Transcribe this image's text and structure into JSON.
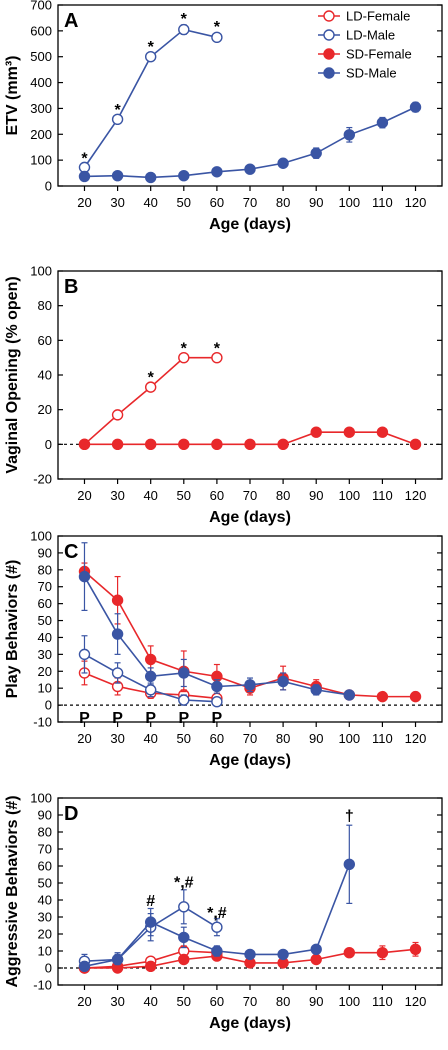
{
  "colors": {
    "female": "#e8282b",
    "male": "#3a55a4"
  },
  "legend": [
    {
      "label": "LD-Female",
      "color": "#e8282b",
      "filled": false
    },
    {
      "label": "LD-Male",
      "color": "#3a55a4",
      "filled": false
    },
    {
      "label": "SD-Female",
      "color": "#e8282b",
      "filled": true
    },
    {
      "label": "SD-Male",
      "color": "#3a55a4",
      "filled": true
    }
  ],
  "chart_data": [
    {
      "type": "line",
      "panel": "A",
      "xlabel": "Age (days)",
      "ylabel": "ETV (mm³)",
      "x_ticks": [
        20,
        30,
        40,
        50,
        60,
        70,
        80,
        90,
        100,
        110,
        120
      ],
      "xlim": [
        12,
        128
      ],
      "ylim": [
        0,
        700
      ],
      "y_ticks": [
        0,
        100,
        200,
        300,
        400,
        500,
        600,
        700
      ],
      "legend_position": "top-right",
      "series": [
        {
          "name": "LD-Male",
          "color": "#3a55a4",
          "filled": false,
          "x": [
            20,
            30,
            40,
            50,
            60
          ],
          "y": [
            72,
            258,
            500,
            605,
            575
          ],
          "err": [
            10,
            12,
            15,
            18,
            15
          ]
        },
        {
          "name": "SD-Male",
          "color": "#3a55a4",
          "filled": true,
          "x": [
            20,
            30,
            40,
            50,
            60,
            70,
            80,
            90,
            100,
            110,
            120
          ],
          "y": [
            37,
            40,
            33,
            40,
            55,
            65,
            88,
            127,
            198,
            245,
            305
          ],
          "err": [
            5,
            5,
            4,
            5,
            6,
            8,
            10,
            20,
            28,
            20,
            18
          ]
        }
      ],
      "annotations": [
        {
          "text": "*",
          "x": 20,
          "y": 110
        },
        {
          "text": "*",
          "x": 30,
          "y": 298
        },
        {
          "text": "*",
          "x": 40,
          "y": 542
        },
        {
          "text": "*",
          "x": 50,
          "y": 650
        },
        {
          "text": "*",
          "x": 60,
          "y": 618
        }
      ]
    },
    {
      "type": "line",
      "panel": "B",
      "xlabel": "Age (days)",
      "ylabel": "Vaginal Opening (% open)",
      "x_ticks": [
        20,
        30,
        40,
        50,
        60,
        70,
        80,
        90,
        100,
        110,
        120
      ],
      "xlim": [
        12,
        128
      ],
      "ylim": [
        -20,
        100
      ],
      "y_ticks": [
        -20,
        0,
        20,
        40,
        60,
        80,
        100
      ],
      "reference_line": 0,
      "series": [
        {
          "name": "LD-Female",
          "color": "#e8282b",
          "filled": false,
          "x": [
            20,
            30,
            40,
            50,
            60
          ],
          "y": [
            0,
            17,
            33,
            50,
            50
          ]
        },
        {
          "name": "SD-Female",
          "color": "#e8282b",
          "filled": true,
          "x": [
            20,
            30,
            40,
            50,
            60,
            70,
            80,
            90,
            100,
            110,
            120
          ],
          "y": [
            0,
            0,
            0,
            0,
            0,
            0,
            0,
            7,
            7,
            7,
            0
          ]
        }
      ],
      "annotations": [
        {
          "text": "*",
          "x": 40,
          "y": 39
        },
        {
          "text": "*",
          "x": 50,
          "y": 56
        },
        {
          "text": "*",
          "x": 60,
          "y": 56
        }
      ]
    },
    {
      "type": "line",
      "panel": "C",
      "xlabel": "Age (days)",
      "ylabel": "Play Behaviors (#)",
      "x_ticks": [
        20,
        30,
        40,
        50,
        60,
        70,
        80,
        90,
        100,
        110,
        120
      ],
      "xlim": [
        12,
        128
      ],
      "ylim": [
        -10,
        100
      ],
      "y_ticks": [
        -10,
        0,
        10,
        20,
        30,
        40,
        50,
        60,
        70,
        80,
        90,
        100
      ],
      "reference_line": 0,
      "series": [
        {
          "name": "LD-Female",
          "color": "#e8282b",
          "filled": false,
          "x": [
            20,
            30,
            40,
            50,
            60
          ],
          "y": [
            19,
            11,
            7,
            6,
            4
          ],
          "err": [
            7,
            5,
            3,
            3,
            3
          ]
        },
        {
          "name": "LD-Male",
          "color": "#3a55a4",
          "filled": false,
          "x": [
            20,
            30,
            40,
            50,
            60
          ],
          "y": [
            30,
            19,
            9,
            3,
            2
          ],
          "err": [
            11,
            6,
            4,
            3,
            2
          ]
        },
        {
          "name": "SD-Female",
          "color": "#e8282b",
          "filled": true,
          "x": [
            20,
            30,
            40,
            50,
            60,
            70,
            80,
            90,
            100,
            110,
            120
          ],
          "y": [
            79,
            62,
            27,
            20,
            17,
            10,
            16,
            11,
            6,
            5,
            5
          ],
          "err": [
            5,
            14,
            8,
            12,
            7,
            4,
            7,
            4,
            1,
            1,
            1
          ]
        },
        {
          "name": "SD-Male",
          "color": "#3a55a4",
          "filled": true,
          "x": [
            20,
            30,
            40,
            50,
            60,
            70,
            80,
            90,
            100
          ],
          "y": [
            76,
            42,
            17,
            19,
            11,
            12,
            14,
            9,
            6
          ],
          "err": [
            20,
            12,
            5,
            8,
            4,
            4,
            5,
            3,
            1
          ]
        }
      ],
      "annotations": [
        {
          "text": "P",
          "x": 20,
          "y": -7
        },
        {
          "text": "P",
          "x": 30,
          "y": -7
        },
        {
          "text": "P",
          "x": 40,
          "y": -7
        },
        {
          "text": "P",
          "x": 50,
          "y": -7
        },
        {
          "text": "P",
          "x": 60,
          "y": -7
        }
      ]
    },
    {
      "type": "line",
      "panel": "D",
      "xlabel": "Age (days)",
      "ylabel": "Aggressive Behaviors (#)",
      "x_ticks": [
        20,
        30,
        40,
        50,
        60,
        70,
        80,
        90,
        100,
        110,
        120
      ],
      "xlim": [
        12,
        128
      ],
      "ylim": [
        -10,
        100
      ],
      "y_ticks": [
        -10,
        0,
        10,
        20,
        30,
        40,
        50,
        60,
        70,
        80,
        90,
        100
      ],
      "reference_line": 0,
      "series": [
        {
          "name": "LD-Female",
          "color": "#e8282b",
          "filled": false,
          "x": [
            20,
            30,
            40,
            50,
            60
          ],
          "y": [
            0,
            1,
            4,
            10,
            9
          ],
          "err": [
            1,
            1,
            2,
            3,
            3
          ]
        },
        {
          "name": "LD-Male",
          "color": "#3a55a4",
          "filled": false,
          "x": [
            20,
            30,
            40,
            50,
            60
          ],
          "y": [
            4,
            5,
            24,
            36,
            24
          ],
          "err": [
            4,
            4,
            8,
            10,
            5
          ]
        },
        {
          "name": "SD-Female",
          "color": "#e8282b",
          "filled": true,
          "x": [
            20,
            30,
            40,
            50,
            60,
            70,
            80,
            90,
            100,
            110,
            120
          ],
          "y": [
            0,
            0,
            1,
            5,
            7,
            3,
            3,
            5,
            9,
            9,
            11
          ],
          "err": [
            1,
            1,
            1,
            2,
            2,
            1,
            1,
            1,
            2,
            4,
            4
          ]
        },
        {
          "name": "SD-Male",
          "color": "#3a55a4",
          "filled": true,
          "x": [
            20,
            30,
            40,
            50,
            60,
            70,
            80,
            90,
            100
          ],
          "y": [
            1,
            5,
            27,
            18,
            10,
            8,
            8,
            11,
            61
          ],
          "err": [
            1,
            3,
            8,
            6,
            3,
            1,
            1,
            2,
            23
          ]
        }
      ],
      "annotations": [
        {
          "text": "#",
          "x": 40,
          "y": 40
        },
        {
          "text": "*,#",
          "x": 50,
          "y": 51
        },
        {
          "text": "*,#",
          "x": 60,
          "y": 33
        },
        {
          "text": "†",
          "x": 100,
          "y": 90
        }
      ]
    }
  ]
}
